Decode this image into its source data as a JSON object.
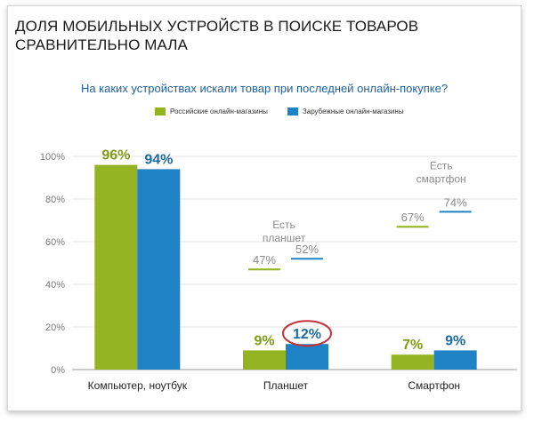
{
  "slide": {
    "title_line1": "ДОЛЯ МОБИЛЬНЫХ УСТРОЙСТВ В ПОИСКЕ ТОВАРОВ",
    "title_line2": "СРАВНИТЕЛЬНО МАЛА",
    "question": "На каких устройствах искали товар при последней онлайн-покупке?"
  },
  "colors": {
    "russian": "#93b320",
    "foreign": "#1f82c4",
    "circle": "#c0323d"
  },
  "chart_data": {
    "type": "bar",
    "categories": [
      "Компьютер, ноутбук",
      "Планшет",
      "Смартфон"
    ],
    "series": [
      {
        "name": "Российские онлайн-магазины",
        "values": [
          96,
          9,
          7
        ]
      },
      {
        "name": "Зарубежные онлайн-магазины",
        "values": [
          94,
          12,
          9
        ]
      }
    ],
    "data_labels": [
      [
        "96%",
        "94%"
      ],
      [
        "9%",
        "12%"
      ],
      [
        "7%",
        "9%"
      ]
    ],
    "y_ticks": [
      "0%",
      "20%",
      "40%",
      "60%",
      "80%",
      "100%"
    ],
    "ylim": [
      0,
      100
    ],
    "grid": true,
    "legend_position": "top",
    "annotations": [
      {
        "category": 1,
        "lines": [
          "Есть",
          "планшет"
        ],
        "russian_value": 47,
        "russian_label": "47%",
        "foreign_value": 52,
        "foreign_label": "52%"
      },
      {
        "category": 2,
        "lines": [
          "Есть",
          "смартфон"
        ],
        "russian_value": 67,
        "russian_label": "67%",
        "foreign_value": 74,
        "foreign_label": "74%"
      }
    ],
    "highlighted": "12%"
  }
}
